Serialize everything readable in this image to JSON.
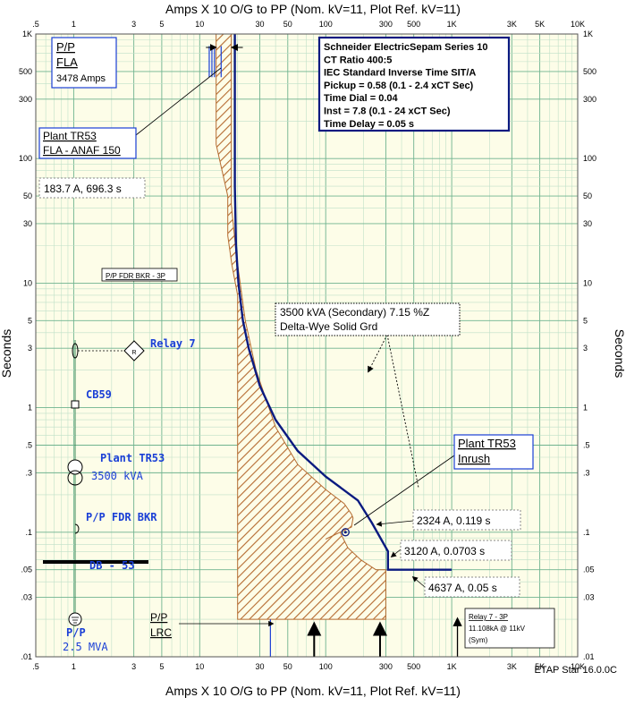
{
  "chart_data": {
    "type": "line",
    "title": "Amps X 10  O/G to PP (Nom. kV=11, Plot Ref. kV=11)",
    "xlabel": "Amps X 10  O/G to PP (Nom. kV=11, Plot Ref. kV=11)",
    "ylabel": "Seconds",
    "x_scale": "log",
    "y_scale": "log",
    "xlim": [
      0.5,
      10000
    ],
    "ylim": [
      0.01,
      1000
    ],
    "x_ticks": [
      0.5,
      1,
      3,
      5,
      10,
      30,
      50,
      100,
      300,
      500,
      1000,
      3000,
      5000,
      10000
    ],
    "x_tick_labels": [
      ".5",
      "1",
      "3",
      "5",
      "10",
      "30",
      "50",
      "100",
      "300",
      "500",
      "1K",
      "3K",
      "5K",
      "10K"
    ],
    "y_ticks": [
      1000,
      500,
      300,
      100,
      50,
      30,
      10,
      5,
      3,
      1,
      0.5,
      0.3,
      0.1,
      0.05,
      0.03,
      0.01
    ],
    "y_tick_labels": [
      "1K",
      "500",
      "300",
      "100",
      "50",
      "30",
      "10",
      "5",
      "3",
      "1",
      ".5",
      ".3",
      ".1",
      ".05",
      ".03",
      ".01"
    ],
    "footer": "ETAP Star 16.0.0C",
    "colors": {
      "background": "#fdfde8",
      "grid_major": "#6fb38f",
      "grid_minor": "#bfe0c8",
      "relay_curve": "#0a1a80",
      "damage_hatch": "#b56b30",
      "label_blue": "#1a3fd6"
    },
    "series": [
      {
        "name": "Relay 7 - 3P",
        "curve": [
          [
            19,
            1000
          ],
          [
            19,
            60
          ],
          [
            19.4,
            20
          ],
          [
            20.3,
            10
          ],
          [
            22,
            5
          ],
          [
            24.5,
            3
          ],
          [
            30,
            1.5
          ],
          [
            40,
            0.8
          ],
          [
            60,
            0.45
          ],
          [
            100,
            0.28
          ],
          [
            180,
            0.18
          ],
          [
            232.4,
            0.119
          ],
          [
            312,
            0.0703
          ],
          [
            312,
            0.05
          ],
          [
            463.7,
            0.05
          ],
          [
            1000,
            0.05
          ]
        ]
      },
      {
        "name": "Plant TR53",
        "band_left": [
          [
            13.5,
            1000
          ],
          [
            13.5,
            130
          ],
          [
            16.7,
            50
          ],
          [
            16.7,
            24
          ],
          [
            18,
            14
          ],
          [
            20,
            8
          ],
          [
            20,
            0.02
          ]
        ],
        "band_right": [
          [
            17.8,
            1000
          ],
          [
            17.8,
            43
          ],
          [
            19.5,
            17
          ],
          [
            23,
            5
          ],
          [
            28,
            2
          ],
          [
            40,
            0.7
          ],
          [
            60,
            0.35
          ],
          [
            100,
            0.22
          ],
          [
            140,
            0.17
          ],
          [
            160,
            0.14
          ],
          [
            165,
            0.13
          ],
          [
            160,
            0.11
          ],
          [
            130,
            0.1
          ],
          [
            100,
            0.088
          ],
          [
            85,
            0.086
          ],
          [
            85,
            0.02
          ],
          [
            0,
            0
          ]
        ],
        "band_bottom": [
          [
            20,
            0.02
          ],
          [
            300,
            0.02
          ]
        ],
        "band_step": [
          [
            130,
            0.1
          ],
          [
            150,
            0.075
          ],
          [
            190,
            0.06
          ],
          [
            250,
            0.05
          ],
          [
            300,
            0.05
          ],
          [
            300,
            0.02
          ]
        ]
      }
    ],
    "markers": {
      "fla_lines": [
        11.9,
        12.5,
        13.1,
        14.8
      ],
      "lrc_line": 36.4,
      "inrush_point": [
        143.5,
        0.1
      ],
      "relay_arrow": 1110.8,
      "bottom_arrows": [
        81,
        270
      ]
    },
    "annotations": {
      "pp_fla": {
        "line1": "P/P",
        "line2": "FLA",
        "line3": "3478 Amps"
      },
      "relay_settings": [
        "Schneider ElectricSepam Series 10",
        "CT Ratio 400:5",
        "IEC Standard Inverse Time SIT/A",
        "Pickup = 0.58 (0.1 - 2.4  xCT Sec)",
        "Time Dial = 0.04",
        "Inst = 7.8 (0.1 - 24  xCT Sec)",
        "Time Delay = 0.05 s"
      ],
      "tr53_fla": {
        "line1": "Plant TR53",
        "line2": "FLA - ANAF 150"
      },
      "point_183": "183.7 A, 696.3 s",
      "pp_fdr_bkr_3p": "P/P FDR BKR - 3P",
      "transformer": {
        "line1": "3500 kVA (Secondary)  7.15 %Z",
        "line2": "Delta-Wye Solid Grd"
      },
      "tr53_inrush": {
        "line1": "Plant TR53",
        "line2": "Inrush"
      },
      "pt_2324": "2324 A, 0.119 s",
      "pt_3120": "3120 A, 0.0703 s",
      "pt_4637": "4637 A, 0.05 s",
      "pp_lrc": {
        "line1": "P/P",
        "line2": "LRC"
      },
      "relay7_3p": {
        "line1": "Relay 7 - 3P",
        "line2": "11.108kA @ 11kV",
        "line3": "(Sym)"
      }
    },
    "one_line": {
      "relay_label": "Relay 7",
      "relay_symbol": "R",
      "cb_label": "CB59",
      "tr_label": "Plant TR53",
      "tr_rating": "3500 kVA",
      "bkr_label": "P/P FDR BKR",
      "bus_label": "DB - 53",
      "source_label": "P/P",
      "source_rating": "2.5 MVA"
    }
  }
}
